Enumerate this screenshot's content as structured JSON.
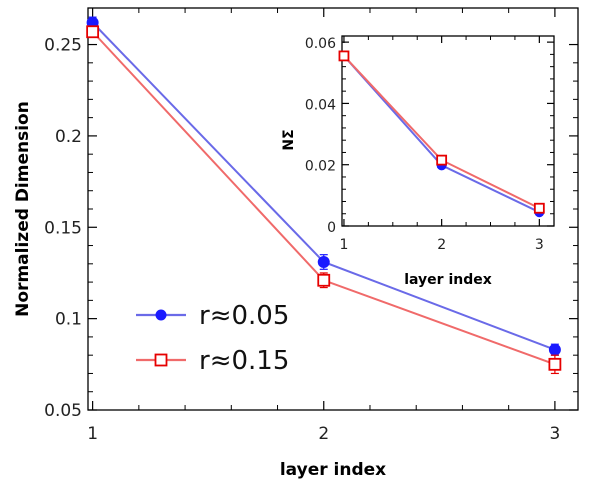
{
  "chart_data": [
    {
      "type": "line",
      "title": "",
      "xlabel": "layer index",
      "ylabel": "Normalized Dimension",
      "xlim": [
        0.98,
        3.1
      ],
      "ylim": [
        0.05,
        0.27
      ],
      "xticks": [
        1,
        2,
        3
      ],
      "xtick_labels": [
        "1",
        "2",
        "3"
      ],
      "yticks": [
        0.05,
        0.1,
        0.15,
        0.2,
        0.25
      ],
      "ytick_labels": [
        "0.05",
        "0.1",
        "0.15",
        "0.2",
        "0.25"
      ],
      "grid": false,
      "legend": "bottom-left",
      "series": [
        {
          "name": "r≈0.05",
          "color": "#1a1aff",
          "line_color": "#6a6ae8",
          "marker": "filled-circle",
          "x": [
            1,
            2,
            3
          ],
          "y": [
            0.262,
            0.131,
            0.083
          ],
          "err": [
            0.003,
            0.004,
            0.003
          ]
        },
        {
          "name": "r≈0.15",
          "color": "#e60000",
          "line_color": "#f06a6a",
          "marker": "open-square",
          "x": [
            1,
            2,
            3
          ],
          "y": [
            0.257,
            0.121,
            0.075
          ],
          "err": [
            0.003,
            0.004,
            0.005
          ]
        }
      ]
    },
    {
      "type": "line",
      "title": "",
      "xlabel": "layer index",
      "ylabel": "NΣ",
      "xlim": [
        0.98,
        3.15
      ],
      "ylim": [
        0,
        0.062
      ],
      "xticks": [
        1,
        2,
        3
      ],
      "xtick_labels": [
        "1",
        "2",
        "3"
      ],
      "yticks": [
        0,
        0.02,
        0.04,
        0.06
      ],
      "ytick_labels": [
        "0",
        "0.02",
        "0.04",
        "0.06"
      ],
      "grid": false,
      "legend": "none",
      "series": [
        {
          "color": "#1a1aff",
          "line_color": "#6a6ae8",
          "marker": "filled-circle",
          "x": [
            1,
            2,
            3
          ],
          "y": [
            0.0555,
            0.0198,
            0.0045
          ]
        },
        {
          "color": "#e60000",
          "line_color": "#f06a6a",
          "marker": "open-square",
          "x": [
            1,
            2,
            3
          ],
          "y": [
            0.0555,
            0.0215,
            0.0058
          ]
        }
      ]
    }
  ]
}
